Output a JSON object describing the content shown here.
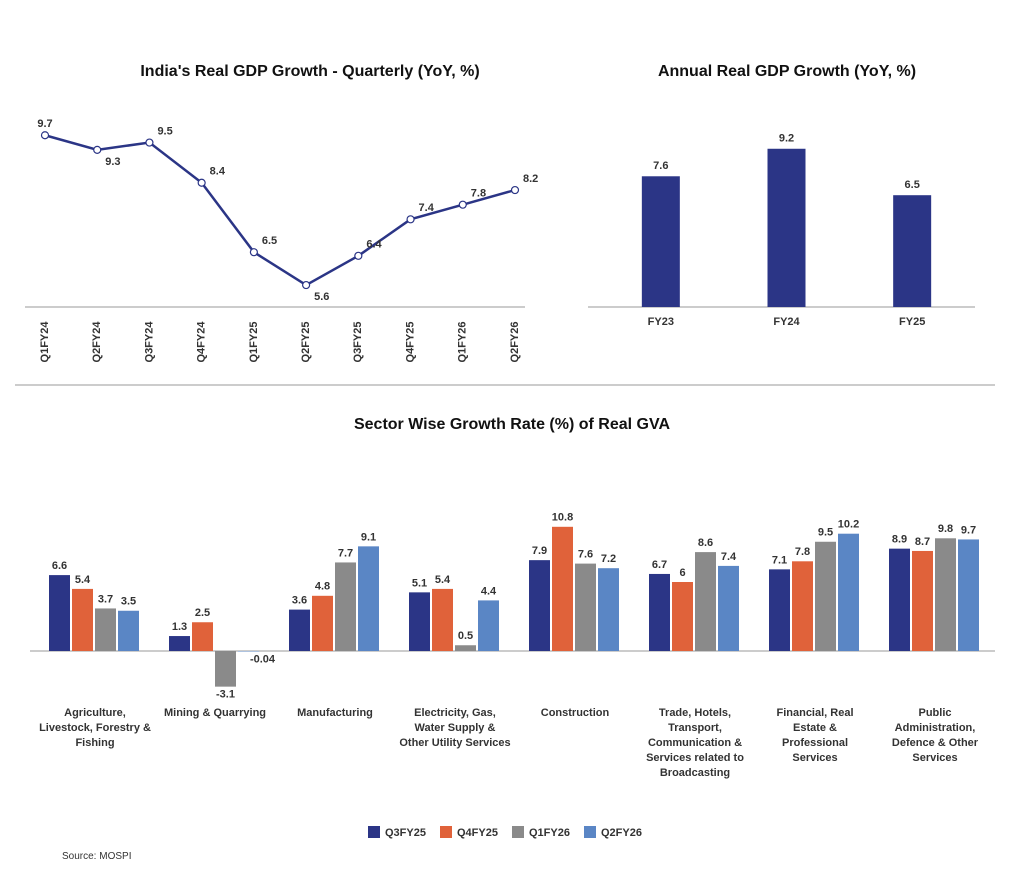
{
  "chart_data": [
    {
      "type": "line",
      "title": "India's Real GDP Growth - Quarterly (YoY, %)",
      "categories": [
        "Q1FY24",
        "Q2FY24",
        "Q3FY24",
        "Q4FY24",
        "Q1FY25",
        "Q2FY25",
        "Q3FY25",
        "Q4FY25",
        "Q1FY26",
        "Q2FY26"
      ],
      "values": [
        9.7,
        9.3,
        9.5,
        8.4,
        6.5,
        5.6,
        6.4,
        7.4,
        7.8,
        8.2
      ],
      "color": "#2b3586",
      "ylim": [
        5,
        10.5
      ]
    },
    {
      "type": "bar",
      "title": "Annual Real GDP Growth (YoY, %)",
      "categories": [
        "FY23",
        "FY24",
        "FY25"
      ],
      "values": [
        7.6,
        9.2,
        6.5
      ],
      "color": "#2b3586",
      "ylim": [
        0,
        10
      ]
    },
    {
      "type": "grouped-bar",
      "title": "Sector Wise Growth Rate (%) of Real GVA",
      "categories": [
        "Agriculture, Livestock, Forestry & Fishing",
        "Mining & Quarrying",
        "Manufacturing",
        "Electricity, Gas, Water Supply & Other Utility Services",
        "Construction",
        "Trade, Hotels, Transport, Communication & Services related to Broadcasting",
        "Financial, Real Estate & Professional Services",
        "Public Administration, Defence & Other Services"
      ],
      "series": [
        {
          "name": "Q3FY25",
          "color": "#2b3586",
          "values": [
            6.6,
            1.3,
            3.6,
            5.1,
            7.9,
            6.7,
            7.1,
            8.9
          ]
        },
        {
          "name": "Q4FY25",
          "color": "#e0623a",
          "values": [
            5.4,
            2.5,
            4.8,
            5.4,
            10.8,
            6,
            7.8,
            8.7
          ]
        },
        {
          "name": "Q1FY26",
          "color": "#8a8a8a",
          "values": [
            3.7,
            -3.1,
            7.7,
            0.5,
            7.6,
            8.6,
            9.5,
            9.8
          ]
        },
        {
          "name": "Q2FY26",
          "color": "#5a86c5",
          "values": [
            3.5,
            -0.04,
            9.1,
            4.4,
            7.2,
            7.4,
            10.2,
            9.7
          ]
        }
      ],
      "ylim": [
        -4,
        12
      ],
      "legend": "bottom"
    }
  ],
  "source": "Source: MOSPI"
}
